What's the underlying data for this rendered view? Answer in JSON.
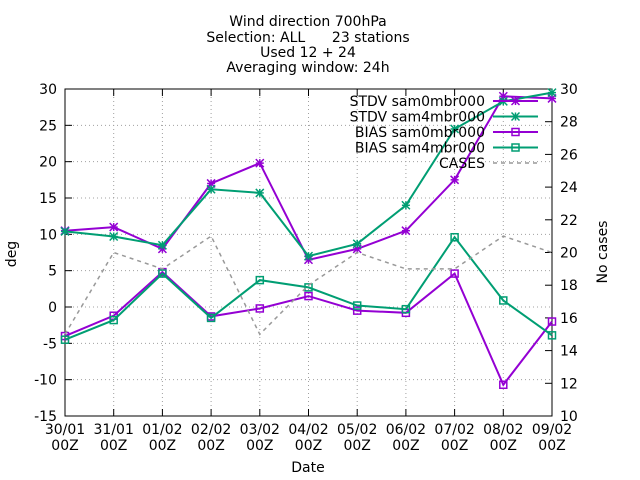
{
  "chart_data": {
    "type": "line",
    "title_lines": [
      "Wind direction 700hPa",
      "Selection: ALL      23 stations",
      "Used 12 + 24",
      "Averaging window: 24h"
    ],
    "xlabel": "Date",
    "ylabel": "deg",
    "y2label": "No cases",
    "categories": [
      [
        "30/01",
        "00Z"
      ],
      [
        "31/01",
        "00Z"
      ],
      [
        "01/02",
        "00Z"
      ],
      [
        "02/02",
        "00Z"
      ],
      [
        "03/02",
        "00Z"
      ],
      [
        "04/02",
        "00Z"
      ],
      [
        "05/02",
        "00Z"
      ],
      [
        "06/02",
        "00Z"
      ],
      [
        "07/02",
        "00Z"
      ],
      [
        "08/02",
        "00Z"
      ],
      [
        "09/02",
        "00Z"
      ]
    ],
    "ylim": [
      -15,
      30
    ],
    "yticks": [
      -15,
      -10,
      -5,
      0,
      5,
      10,
      15,
      20,
      25,
      30
    ],
    "y2lim": [
      10,
      30
    ],
    "y2ticks": [
      10,
      12,
      14,
      16,
      18,
      20,
      22,
      24,
      26,
      28,
      30
    ],
    "grid": true,
    "legend_position": "top-right",
    "series": [
      {
        "name": "STDV sam0mbr000",
        "axis": "y",
        "color": "#9400d3",
        "marker": "star",
        "dash": "none",
        "values": [
          10.5,
          11.0,
          8.0,
          17.0,
          19.8,
          6.5,
          8.0,
          10.5,
          17.5,
          29.0,
          28.7
        ]
      },
      {
        "name": "STDV sam4mbr000",
        "axis": "y",
        "color": "#009e73",
        "marker": "star",
        "dash": "none",
        "values": [
          10.4,
          9.7,
          8.5,
          16.2,
          15.7,
          7.0,
          8.7,
          14.0,
          24.5,
          28.3,
          29.5
        ]
      },
      {
        "name": "BIAS sam0mbr000",
        "axis": "y",
        "color": "#9400d3",
        "marker": "square",
        "dash": "none",
        "values": [
          -4.0,
          -1.2,
          4.8,
          -1.3,
          -0.2,
          1.5,
          -0.5,
          -0.8,
          4.6,
          -10.7,
          -2.0
        ]
      },
      {
        "name": "BIAS sam4mbr000",
        "axis": "y",
        "color": "#009e73",
        "marker": "square",
        "dash": "none",
        "values": [
          -4.5,
          -1.8,
          4.6,
          -1.5,
          3.7,
          2.7,
          0.2,
          -0.3,
          9.6,
          0.9,
          -3.9
        ]
      },
      {
        "name": "CASES",
        "axis": "y2",
        "color": "#999999",
        "marker": "none",
        "dash": "4,4",
        "values": [
          15,
          20,
          19,
          21,
          15,
          18,
          20,
          19,
          19,
          21,
          20
        ]
      }
    ]
  }
}
